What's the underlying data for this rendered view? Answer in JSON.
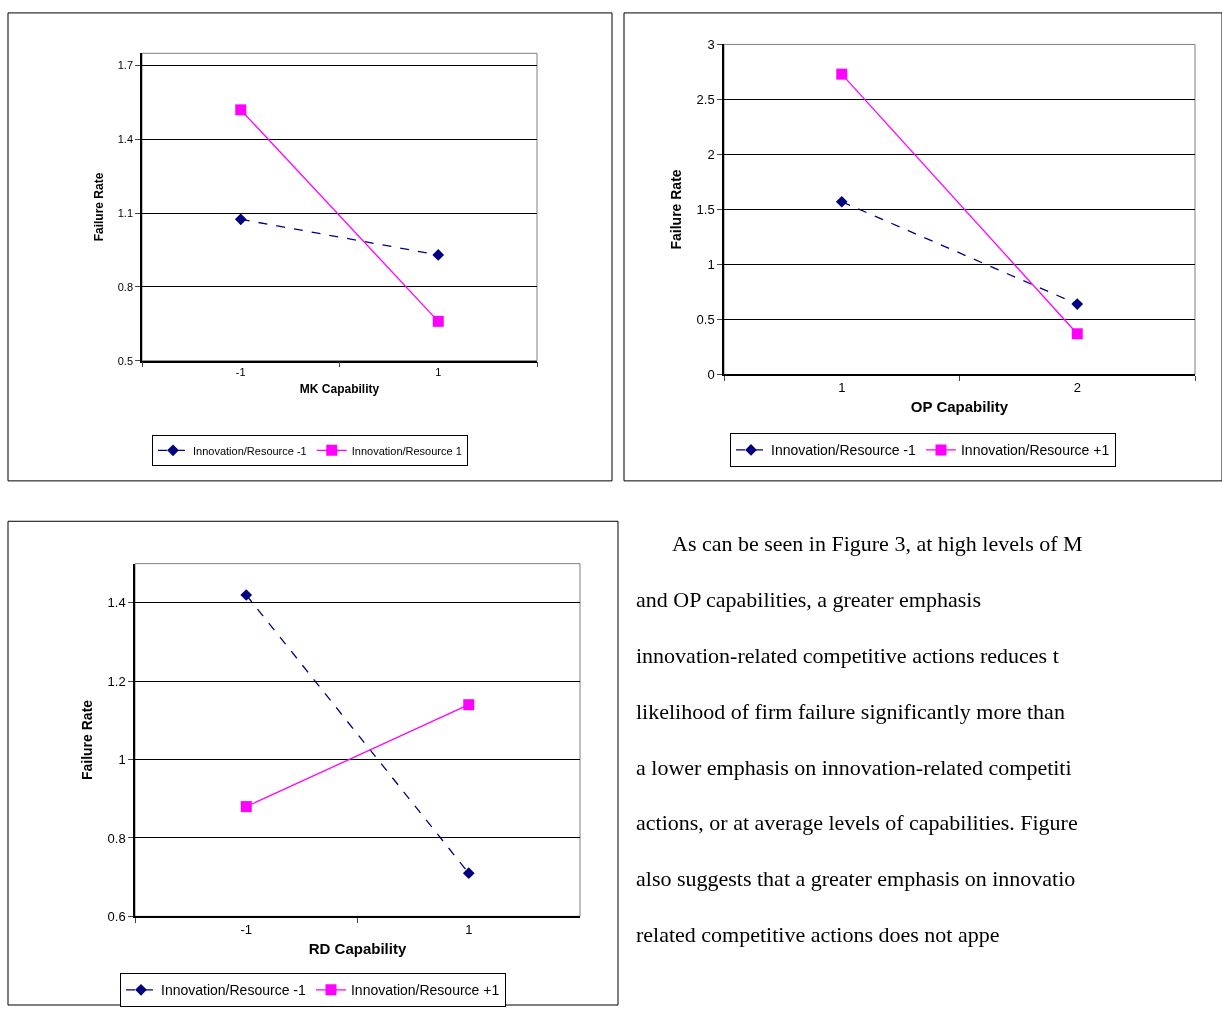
{
  "chart_data": [
    {
      "type": "line",
      "xlabel": "MK Capability",
      "ylabel": "Failure Rate",
      "categories": [
        "-1",
        "1"
      ],
      "ylim": [
        0.5,
        1.75
      ],
      "yticks": [
        0.5,
        0.8,
        1.1,
        1.4,
        1.7
      ],
      "grid": "y",
      "legend": "bottom",
      "series": [
        {
          "name": "Innovation/Resource -1",
          "color": "#000080",
          "values": [
            1.075,
            0.93
          ],
          "marker": "diamond",
          "line_style": "dashed"
        },
        {
          "name": "Innovation/Resource 1",
          "color": "#ff00ff",
          "values": [
            1.52,
            0.66
          ],
          "marker": "square",
          "line_style": "solid"
        }
      ]
    },
    {
      "type": "line",
      "xlabel": "OP Capability",
      "ylabel": "Failure Rate",
      "categories": [
        "1",
        "2"
      ],
      "ylim": [
        0,
        3
      ],
      "yticks": [
        0,
        0.5,
        1,
        1.5,
        2,
        2.5,
        3
      ],
      "grid": "y",
      "legend": "bottom",
      "series": [
        {
          "name": "Innovation/Resource -1",
          "color": "#000080",
          "values": [
            1.57,
            0.64
          ],
          "marker": "diamond",
          "line_style": "dashed"
        },
        {
          "name": "Innovation/Resource +1",
          "color": "#ff00ff",
          "values": [
            2.73,
            0.37
          ],
          "marker": "square",
          "line_style": "solid"
        }
      ]
    },
    {
      "type": "line",
      "xlabel": "RD Capability",
      "ylabel": "Failure Rate",
      "categories": [
        "-1",
        "1"
      ],
      "ylim": [
        0.6,
        1.5
      ],
      "yticks": [
        0.6,
        0.8,
        1,
        1.2,
        1.4
      ],
      "grid": "y",
      "legend": "bottom",
      "series": [
        {
          "name": "Innovation/Resource -1",
          "color": "#000080",
          "values": [
            1.42,
            0.71
          ],
          "marker": "diamond",
          "line_style": "dashed"
        },
        {
          "name": "Innovation/Resource +1",
          "color": "#ff00ff",
          "values": [
            0.88,
            1.14
          ],
          "marker": "square",
          "line_style": "solid"
        }
      ]
    },
    {
      "type": "other",
      "annotations": [
        "As can be seen in Figure 3, at high levels of M",
        "and OP capabilities, a greater emphasis",
        "innovation-related competitive actions reduces t",
        "likelihood of firm failure significantly more than",
        "a lower emphasis on innovation-related competiti",
        "actions, or at average levels of capabilities. Figure",
        "also suggests that a greater emphasis on innovatio",
        "related competitive actions does not appe"
      ]
    }
  ]
}
